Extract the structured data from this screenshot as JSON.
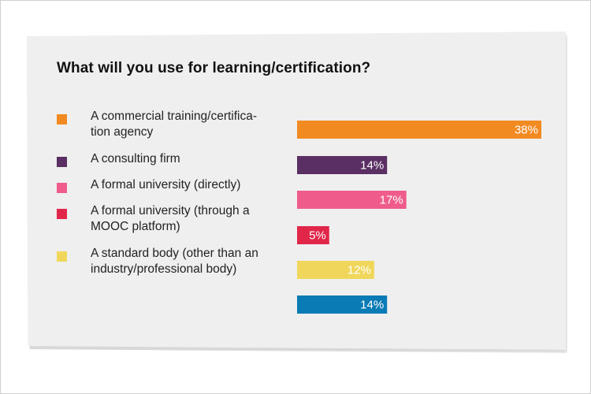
{
  "chart_data": {
    "type": "bar",
    "orientation": "horizontal",
    "title": "What will you use for learning/certification?",
    "categories": [
      "A commercial training/certifica-tion agency",
      "A consulting firm",
      "A formal university (directly)",
      "A formal university (through a MOOC platform)",
      "A standard body (other than an industry/professional body)",
      ""
    ],
    "values": [
      38,
      14,
      17,
      5,
      12,
      14
    ],
    "value_labels": [
      "38%",
      "14%",
      "17%",
      "5%",
      "12%",
      "14%"
    ],
    "colors": [
      "#f28a22",
      "#5a2f63",
      "#ef5c8c",
      "#e1264a",
      "#f0d75b",
      "#0a7bb5"
    ],
    "xlim": [
      0,
      38
    ],
    "grid": false,
    "legend_placement": "left"
  },
  "legend": {
    "items": [
      {
        "label_line1": "A commercial training/certifica-",
        "label_line2": "tion agency",
        "color": "#f28a22"
      },
      {
        "label_line1": "A consulting firm",
        "label_line2": "",
        "color": "#5a2f63"
      },
      {
        "label_line1": "A formal university (directly)",
        "label_line2": "",
        "color": "#ef5c8c"
      },
      {
        "label_line1": "A formal university (through a",
        "label_line2": "MOOC platform)",
        "color": "#e1264a"
      },
      {
        "label_line1": "A standard body (other than an",
        "label_line2": "industry/professional body)",
        "color": "#f0d75b"
      }
    ]
  }
}
